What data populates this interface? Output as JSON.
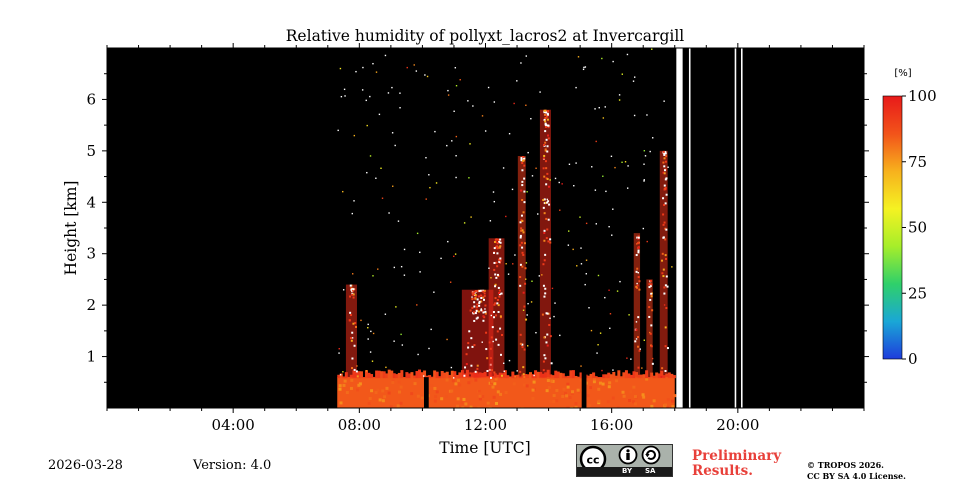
{
  "chart_data": {
    "type": "heatmap",
    "title": "Relative humidity of pollyxt_lacros2 at Invercargill",
    "xlabel": "Time [UTC]",
    "ylabel": "Height [km]",
    "x_unit": "hours UTC",
    "xlim": [
      0,
      24
    ],
    "ylim": [
      0,
      7
    ],
    "x_ticks": [
      {
        "value": 4,
        "label": "04:00"
      },
      {
        "value": 8,
        "label": "08:00"
      },
      {
        "value": 12,
        "label": "12:00"
      },
      {
        "value": 16,
        "label": "16:00"
      },
      {
        "value": 20,
        "label": "20:00"
      }
    ],
    "y_ticks": [
      {
        "value": 1,
        "label": "1"
      },
      {
        "value": 2,
        "label": "2"
      },
      {
        "value": 3,
        "label": "3"
      },
      {
        "value": 4,
        "label": "4"
      },
      {
        "value": 5,
        "label": "5"
      },
      {
        "value": 6,
        "label": "6"
      }
    ],
    "colorbar": {
      "label": "[%]",
      "range": [
        0,
        100
      ],
      "ticks": [
        {
          "value": 0,
          "label": "0"
        },
        {
          "value": 25,
          "label": "25"
        },
        {
          "value": 50,
          "label": "50"
        },
        {
          "value": 75,
          "label": "75"
        },
        {
          "value": 100,
          "label": "100"
        }
      ],
      "colormap": [
        "#1e3cdc",
        "#1aa7d6",
        "#2fd06a",
        "#a6ee2a",
        "#f5f222",
        "#f7b11d",
        "#f2531a",
        "#e81a1a"
      ]
    },
    "background_color": "#000000",
    "measurement_start_h": 7.3,
    "measurement_end_h": 18.0,
    "surface_layer": {
      "start_h": 7.3,
      "end_h": 18.0,
      "top_km": 0.6,
      "approx_rh_pct": 85
    },
    "gaps_white": [
      {
        "start_h": 18.05,
        "end_h": 18.25
      },
      {
        "start_h": 18.45,
        "end_h": 18.5
      },
      {
        "start_h": 19.9,
        "end_h": 19.95
      },
      {
        "start_h": 20.1,
        "end_h": 20.15
      }
    ],
    "gaps_dark": [
      {
        "start_h": 10.05,
        "end_h": 10.2,
        "top_km": 0.6
      },
      {
        "start_h": 15.05,
        "end_h": 15.2,
        "top_km": 0.8
      }
    ],
    "plumes": [
      {
        "center_h": 7.75,
        "width_h": 0.35,
        "top_km": 2.4,
        "approx_rh_pct": 95
      },
      {
        "center_h": 11.75,
        "width_h": 1.0,
        "top_km": 2.3,
        "approx_rh_pct": 98
      },
      {
        "center_h": 12.35,
        "width_h": 0.5,
        "top_km": 3.3,
        "approx_rh_pct": 96
      },
      {
        "center_h": 13.15,
        "width_h": 0.25,
        "top_km": 4.9,
        "approx_rh_pct": 92
      },
      {
        "center_h": 13.9,
        "width_h": 0.35,
        "top_km": 5.8,
        "approx_rh_pct": 96
      },
      {
        "center_h": 16.8,
        "width_h": 0.2,
        "top_km": 3.4,
        "approx_rh_pct": 92
      },
      {
        "center_h": 17.2,
        "width_h": 0.2,
        "top_km": 2.5,
        "approx_rh_pct": 92
      },
      {
        "center_h": 17.65,
        "width_h": 0.25,
        "top_km": 5.0,
        "approx_rh_pct": 94
      }
    ]
  },
  "footer": {
    "date": "2026-03-28",
    "version": "Version: 4.0",
    "preliminary_line1": "Preliminary",
    "preliminary_line2": "Results.",
    "copyright_line1": "© TROPOS 2026.",
    "copyright_line2": "CC BY SA 4.0 License.",
    "license_badge": {
      "cc": "cc",
      "by": "BY",
      "sa": "SA"
    }
  }
}
